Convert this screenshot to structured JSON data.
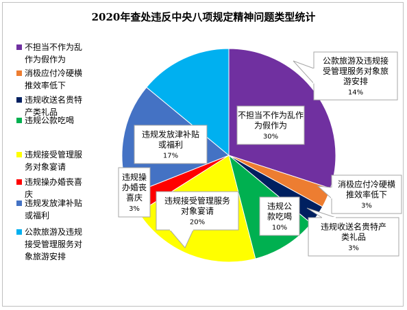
{
  "chart_data": {
    "type": "pie",
    "title": "2020年查处违反中央八项规定精神问题类型统计",
    "legend_position": "left",
    "slices": [
      {
        "name": "不担当不作为乱作为假作为",
        "legend": "不担当不作为乱\n作为假作为",
        "label": "不担当不作为乱作\n为假作为",
        "value": 30,
        "pct": "30%",
        "color": "#7030A0"
      },
      {
        "name": "消极应付冷硬横推效率低下",
        "legend": "消极应付冷硬横\n推效率低下",
        "label": "消极应付冷硬横\n推效率低下",
        "value": 3,
        "pct": "3%",
        "color": "#ED7D31"
      },
      {
        "name": "违规收送名贵特产类礼品",
        "legend": "违规收送名贵特\n产类礼品",
        "label": "违规收送名贵特产\n类礼品",
        "value": 3,
        "pct": "3%",
        "color": "#002060"
      },
      {
        "name": "违规公款吃喝",
        "legend": "违规公款吃喝",
        "label": "违规公\n款吃喝",
        "value": 10,
        "pct": "10%",
        "color": "#00B050"
      },
      {
        "name": "违规接受管理服务对象宴请",
        "legend": "违规接受管理服\n务对象宴请",
        "label": "违规接受管理服务\n对象宴请",
        "value": 20,
        "pct": "20%",
        "color": "#FFFF00"
      },
      {
        "name": "违规操办婚丧喜庆",
        "legend": "违规操办婚丧喜\n庆",
        "label": "违规操\n办婚丧\n喜庆",
        "value": 3,
        "pct": "3%",
        "color": "#FF0000"
      },
      {
        "name": "违规发放津补贴或福利",
        "legend": "违规发放津补贴\n或福利",
        "label": "违规发放津补贴\n或福利",
        "value": 17,
        "pct": "17%",
        "color": "#4472C4"
      },
      {
        "name": "公款旅游及违规接受管理服务对象旅游安排",
        "legend": "公款旅游及违规\n接受管理服务对\n象旅游安排",
        "label": "公款旅游及违规接\n受管理服务对象旅\n游安排",
        "value": 14,
        "pct": "14%",
        "color": "#00B0F0"
      }
    ]
  }
}
